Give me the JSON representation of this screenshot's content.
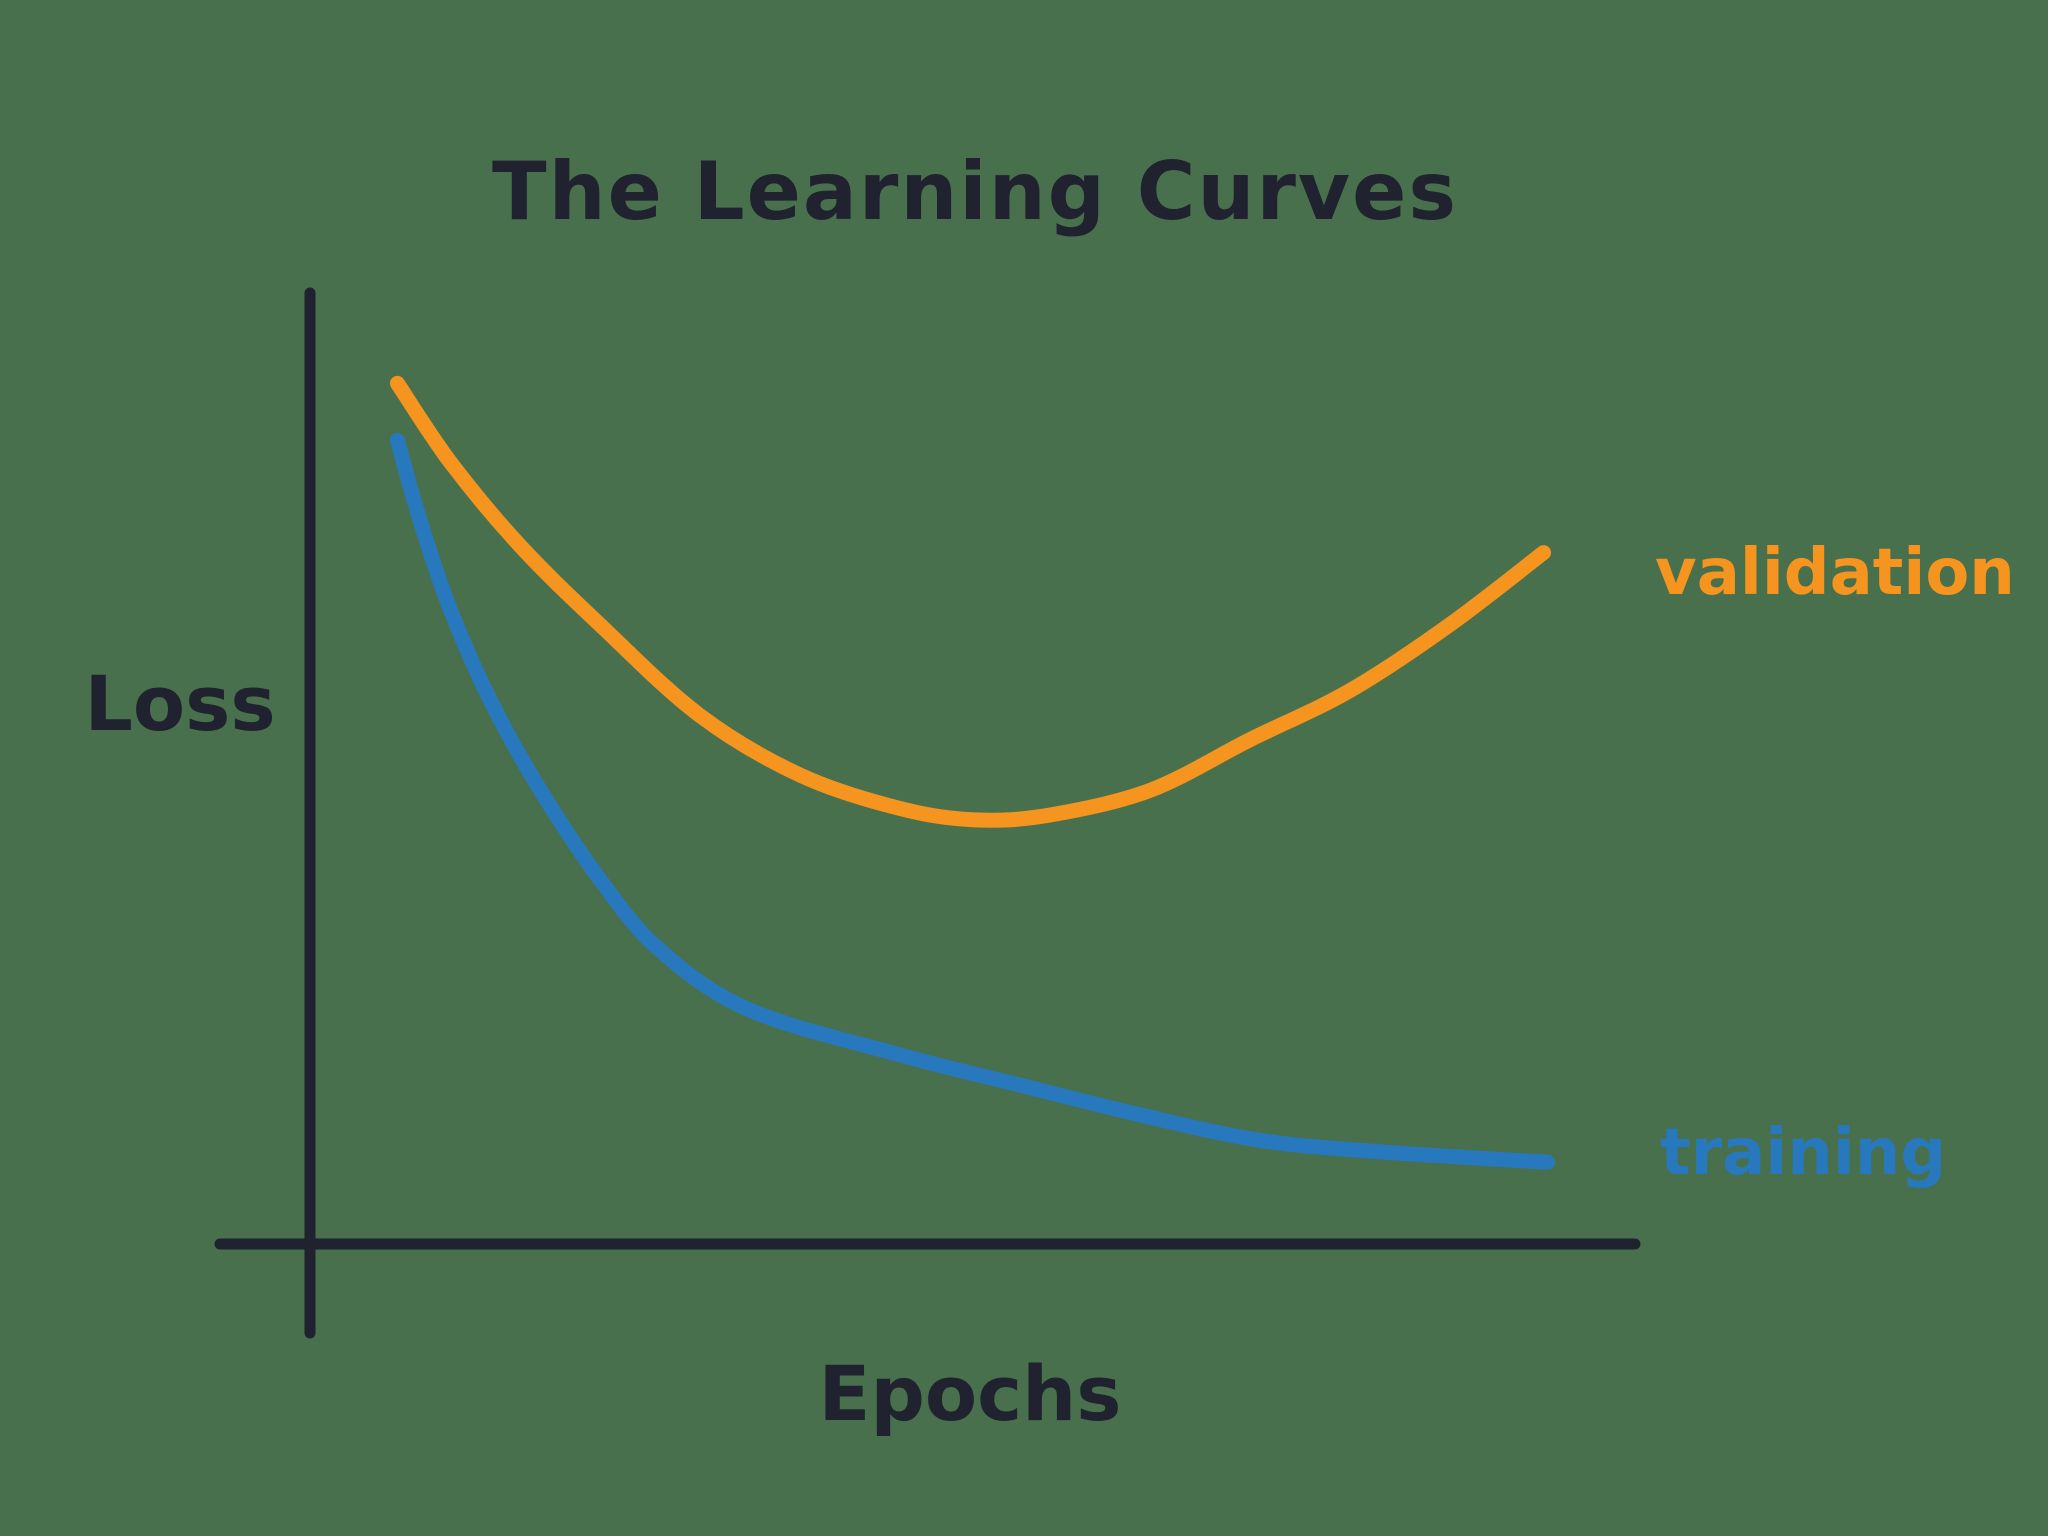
{
  "page": {
    "background_color": "#48704D"
  },
  "chart_data": {
    "type": "line",
    "title": "The Learning Curves",
    "xlabel": "Epochs",
    "ylabel": "Loss",
    "title_color": "#20222F",
    "text_color": "#20222F",
    "axis_color": "#20222F",
    "grid": false,
    "axes_ticks": "none (conceptual sketch, unlabeled axes)",
    "legend_position": "inline labels right of curve ends",
    "x_range": [
      0,
      1
    ],
    "y_range": [
      0,
      1
    ],
    "series": [
      {
        "name": "validation",
        "color": "#F5941E",
        "shape": "U-shaped: decreases then rises (overfitting)",
        "x": [
          0.066,
          0.106,
          0.158,
          0.219,
          0.294,
          0.37,
          0.445,
          0.502,
          0.558,
          0.634,
          0.709,
          0.785,
          0.86,
          0.931
        ],
        "y": [
          0.905,
          0.822,
          0.735,
          0.651,
          0.556,
          0.493,
          0.458,
          0.446,
          0.451,
          0.477,
          0.53,
          0.582,
          0.651,
          0.727
        ]
      },
      {
        "name": "training",
        "color": "#2878BE",
        "shape": "monotonically decreasing, flattens out",
        "x": [
          0.066,
          0.083,
          0.106,
          0.136,
          0.174,
          0.219,
          0.264,
          0.332,
          0.445,
          0.536,
          0.626,
          0.717,
          0.808,
          0.934
        ],
        "y": [
          0.845,
          0.761,
          0.667,
          0.572,
          0.477,
          0.383,
          0.309,
          0.246,
          0.199,
          0.167,
          0.136,
          0.109,
          0.097,
          0.086
        ]
      }
    ]
  }
}
